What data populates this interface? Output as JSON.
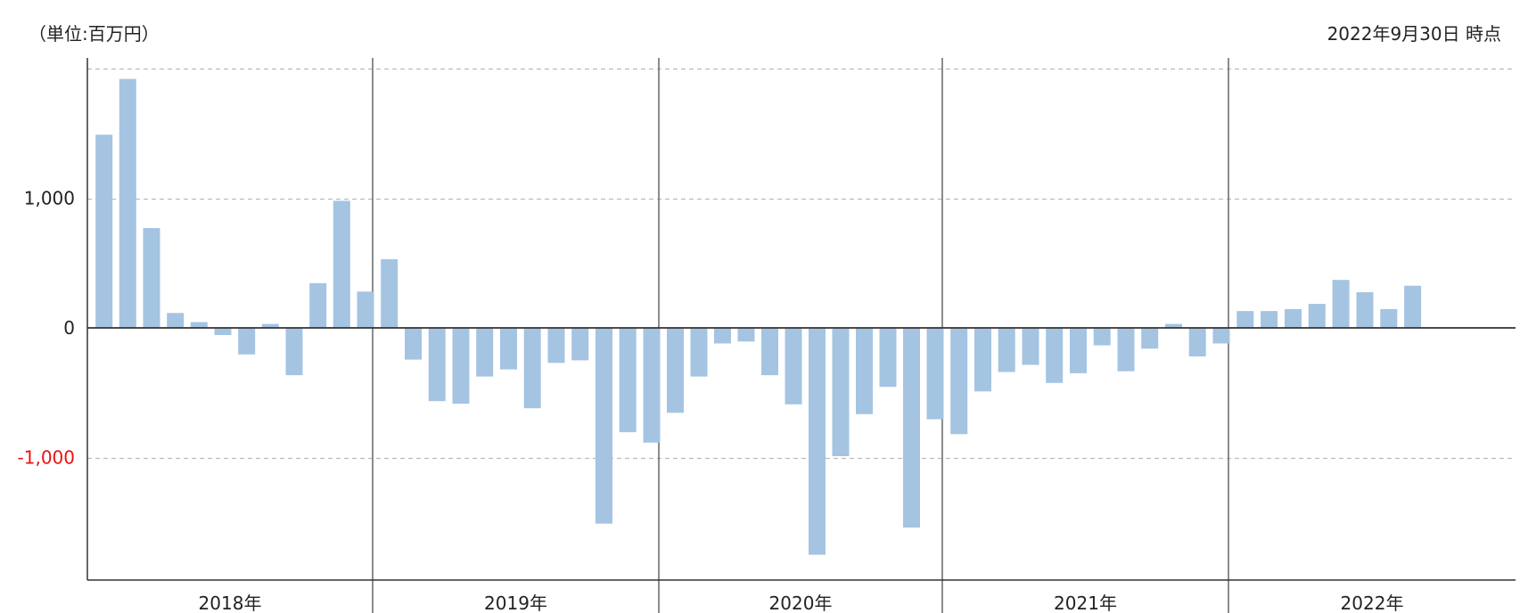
{
  "header": {
    "unit_label": "（単位:百万円）",
    "as_of_label": "2022年9月30日 時点"
  },
  "colors": {
    "bar": "#a4c4e2",
    "axis": "#333333",
    "grid": "#bbbbbb",
    "separator": "#666666",
    "tick_text": "#222222",
    "negative_tick_text": "#ee1111"
  },
  "chart_data": {
    "type": "bar",
    "ylim": [
      -1950,
      2050
    ],
    "y_ticks": [
      {
        "value": 1000,
        "label": "1,000"
      },
      {
        "value": 0,
        "label": "0"
      },
      {
        "value": -1000,
        "label": "-1,000"
      }
    ],
    "gridlines": [
      1000,
      -1000,
      2000
    ],
    "grid": true,
    "groups": [
      {
        "label": "2018年",
        "months": 12,
        "values": [
          1490,
          1920,
          770,
          115,
          45,
          -55,
          -205,
          30,
          -365,
          345,
          980,
          280
        ]
      },
      {
        "label": "2019年",
        "months": 12,
        "values": [
          530,
          -245,
          -565,
          -585,
          -375,
          -320,
          -620,
          -270,
          -250,
          -1510,
          -805,
          -885
        ]
      },
      {
        "label": "2020年",
        "months": 12,
        "values": [
          -655,
          -375,
          -120,
          -105,
          -365,
          -590,
          -1750,
          -990,
          -665,
          -455,
          -1540,
          -705
        ]
      },
      {
        "label": "2021年",
        "months": 12,
        "values": [
          -820,
          -490,
          -340,
          -285,
          -425,
          -350,
          -135,
          -335,
          -160,
          30,
          -220,
          -120
        ]
      },
      {
        "label": "2022年",
        "months": 12,
        "values": [
          130,
          130,
          145,
          185,
          370,
          275,
          145,
          325
        ]
      }
    ]
  }
}
